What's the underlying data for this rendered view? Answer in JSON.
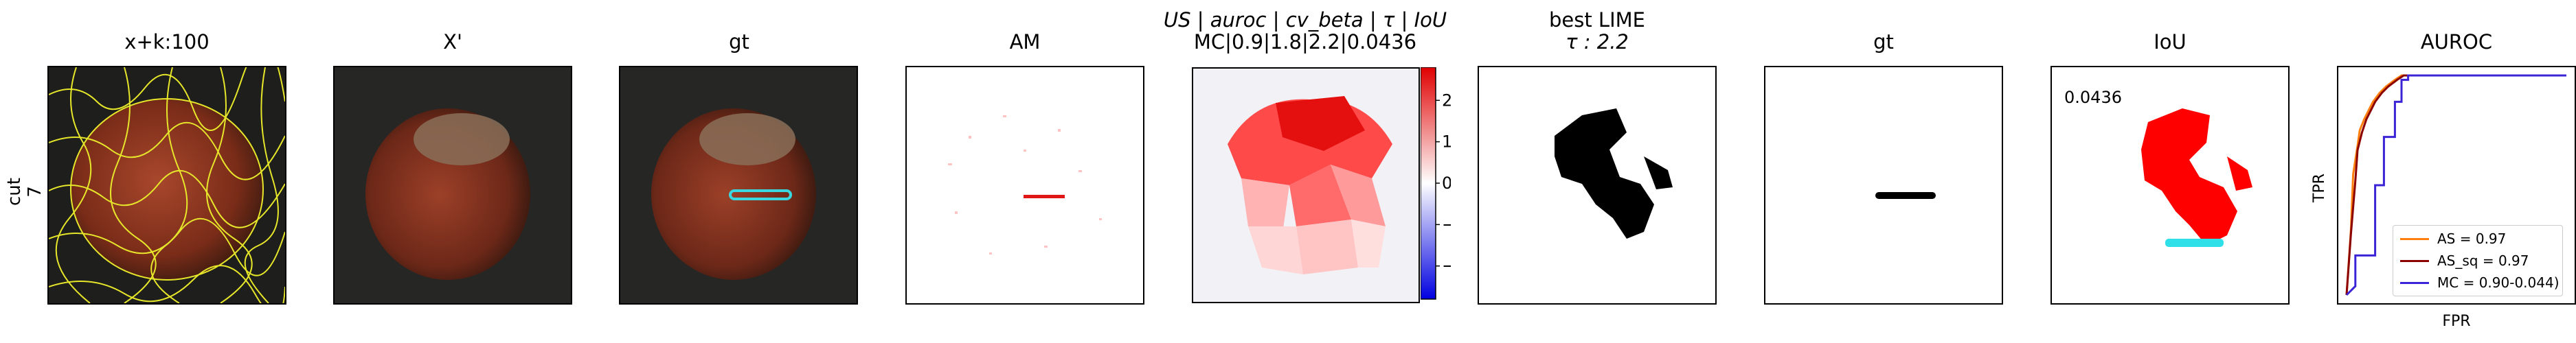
{
  "row_label_line1": "cut",
  "row_label_line2": "7",
  "titles": {
    "p1": "x+k:100",
    "p2": "X'",
    "p3": "gt",
    "p4": "AM",
    "p5_line1": "US | auroc | cv_beta | τ | IoU",
    "p5_line2": "MC|0.9|1.8|2.2|0.0436",
    "p6_line1": "best LIME",
    "p6_line2": "τ : 2.2",
    "p7": "gt",
    "p8": "IoU",
    "p9": "AUROC"
  },
  "iou_value_label": "0.0436",
  "colorbar": {
    "ticks": [
      "2",
      "1",
      "0",
      "−1",
      "−2"
    ],
    "tick_values": [
      2,
      1,
      0,
      -1,
      -2
    ],
    "range": [
      -2.8,
      2.8
    ]
  },
  "chart_data": [
    {
      "type": "line",
      "title": "AUROC",
      "xlabel": "FPR",
      "ylabel": "TPR",
      "xlim": [
        0,
        1
      ],
      "ylim": [
        0,
        1
      ],
      "legend_position": "bottom-right",
      "series": [
        {
          "name": "AS = 0.97",
          "color": "#ff7f0e",
          "x": [
            0,
            0.02,
            0.03,
            0.05,
            0.06,
            0.08,
            0.1,
            0.12,
            0.15,
            0.18,
            0.22,
            0.25,
            1.0
          ],
          "y": [
            0,
            0.3,
            0.55,
            0.68,
            0.75,
            0.8,
            0.84,
            0.88,
            0.92,
            0.95,
            0.98,
            1.0,
            1.0
          ]
        },
        {
          "name": "AS_sq = 0.97",
          "color": "#8b0000",
          "x": [
            0,
            0.02,
            0.04,
            0.05,
            0.07,
            0.09,
            0.11,
            0.13,
            0.16,
            0.19,
            0.23,
            0.26,
            1.0
          ],
          "y": [
            0,
            0.28,
            0.52,
            0.66,
            0.74,
            0.8,
            0.84,
            0.88,
            0.92,
            0.95,
            0.98,
            1.0,
            1.0
          ]
        },
        {
          "name": "MC = 0.90-0.044)",
          "color": "#3a24d6",
          "x": [
            0,
            0.04,
            0.04,
            0.13,
            0.13,
            0.17,
            0.17,
            0.22,
            0.22,
            0.25,
            0.25,
            0.28,
            0.28,
            1.0
          ],
          "y": [
            0,
            0.04,
            0.18,
            0.18,
            0.5,
            0.5,
            0.72,
            0.72,
            0.88,
            0.88,
            0.98,
            0.98,
            1.0,
            1.0
          ]
        }
      ]
    }
  ]
}
